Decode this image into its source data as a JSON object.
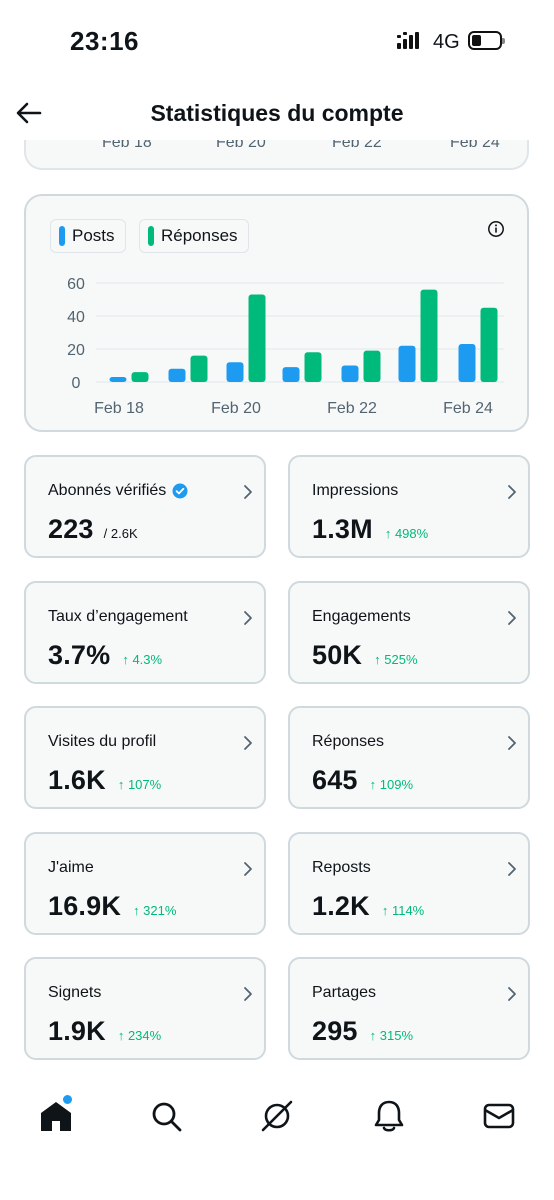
{
  "status_bar": {
    "time": "23:16",
    "network": "4G"
  },
  "header": {
    "title": "Statistiques du compte"
  },
  "prev_card": {
    "ticks": [
      "Feb 18",
      "Feb 20",
      "Feb 22",
      "Feb 24"
    ]
  },
  "legend": {
    "posts": "Posts",
    "replies": "Réponses"
  },
  "colors": {
    "posts": "#1d9bf0",
    "replies": "#00ba7c",
    "accent": "#1d9bf0"
  },
  "chart_data": {
    "type": "bar",
    "x_ticks": [
      "Feb 18",
      "Feb 20",
      "Feb 22",
      "Feb 24"
    ],
    "y_ticks": [
      0,
      20,
      40,
      60
    ],
    "ylim": [
      0,
      60
    ],
    "series": [
      {
        "name": "Posts",
        "values": [
          3,
          8,
          12,
          9,
          10,
          22,
          23
        ]
      },
      {
        "name": "Réponses",
        "values": [
          6,
          16,
          53,
          18,
          19,
          56,
          45
        ]
      }
    ]
  },
  "stats": [
    {
      "label": "Abonnés vérifiés",
      "value": "223",
      "change": "",
      "sub": "/ 2.6K",
      "verified": true
    },
    {
      "label": "Impressions",
      "value": "1.3M",
      "change": "↑ 498%",
      "sub": ""
    },
    {
      "label": "Taux d’engagement",
      "value": "3.7%",
      "change": "↑ 4.3%",
      "sub": ""
    },
    {
      "label": "Engagements",
      "value": "50K",
      "change": "↑ 525%",
      "sub": ""
    },
    {
      "label": "Visites du profil",
      "value": "1.6K",
      "change": "↑ 107%",
      "sub": ""
    },
    {
      "label": "Réponses",
      "value": "645",
      "change": "↑ 109%",
      "sub": ""
    },
    {
      "label": "J'aime",
      "value": "16.9K",
      "change": "↑ 321%",
      "sub": ""
    },
    {
      "label": "Reposts",
      "value": "1.2K",
      "change": "↑ 114%",
      "sub": ""
    },
    {
      "label": "Signets",
      "value": "1.9K",
      "change": "↑ 234%",
      "sub": ""
    },
    {
      "label": "Partages",
      "value": "295",
      "change": "↑ 315%",
      "sub": ""
    }
  ],
  "tab_bar": {
    "icons": [
      "home-icon",
      "search-icon",
      "grok-icon",
      "notifications-icon",
      "messages-icon"
    ]
  }
}
